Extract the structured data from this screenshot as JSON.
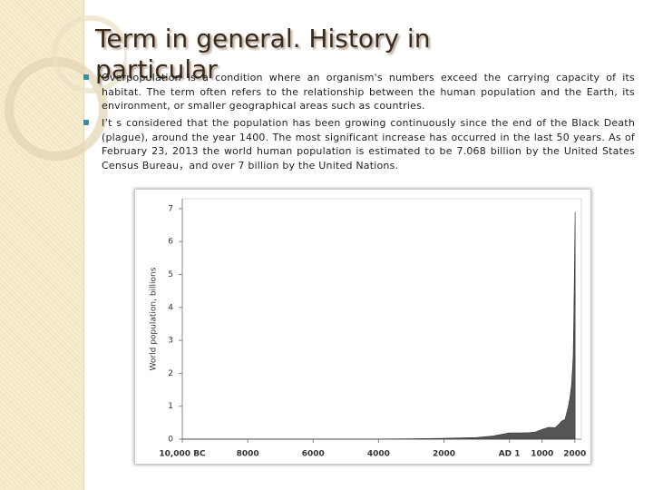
{
  "header": {
    "title": "Term in general. History in particular"
  },
  "bullets": [
    "Overpopulation is a condition where an organism's numbers exceed the carrying capacity of its habitat. The term often refers to the relationship between the human population and the Earth,  its environment, or smaller geographical areas such as countries.",
    "I’t  s  considered that the population has been growing continuously since the end of the Black Death (plague), around the year 1400. The most significant increase has occurred in the last 50 years. As of February 23, 2013 the world human population is estimated to be 7.068 billion by the United States Census Bureau，and over 7 billion by the United Nations."
  ],
  "chart_data": {
    "type": "area",
    "y_label": "World population, billions",
    "x": [
      -10000,
      -8000,
      -6000,
      -4000,
      -3000,
      -2000,
      -1000,
      -500,
      0,
      200,
      400,
      600,
      800,
      1000,
      1200,
      1400,
      1500,
      1600,
      1700,
      1800,
      1850,
      1900,
      1950,
      1970,
      1990,
      2000,
      2010
    ],
    "values": [
      0.004,
      0.005,
      0.005,
      0.007,
      0.014,
      0.027,
      0.05,
      0.1,
      0.19,
      0.19,
      0.19,
      0.2,
      0.22,
      0.3,
      0.36,
      0.35,
      0.44,
      0.55,
      0.6,
      0.98,
      1.26,
      1.65,
      2.52,
      3.7,
      5.3,
      6.1,
      6.9
    ],
    "color": "#555555",
    "xlim": [
      -10000,
      2200
    ],
    "ylim": [
      0,
      7.3
    ],
    "xticks": [
      {
        "value": -10000,
        "label": "10,000 BC"
      },
      {
        "value": -8000,
        "label": "8000"
      },
      {
        "value": -6000,
        "label": "6000"
      },
      {
        "value": -4000,
        "label": "4000"
      },
      {
        "value": -2000,
        "label": "2000"
      },
      {
        "value": 0,
        "label": "AD 1"
      },
      {
        "value": 1000,
        "label": "1000"
      },
      {
        "value": 2000,
        "label": "2000"
      }
    ],
    "yticks": [
      0,
      1,
      2,
      3,
      4,
      5,
      6,
      7
    ]
  }
}
